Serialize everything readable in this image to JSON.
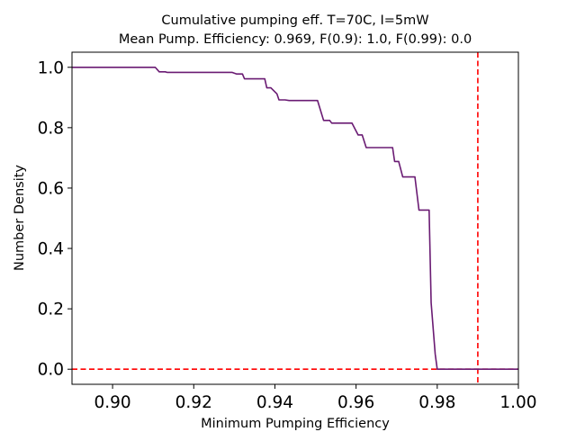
{
  "chart_data": {
    "type": "line",
    "title": "Cumulative pumping eff. T=70C, I=5mW",
    "subtitle": "Mean Pump. Efficiency: 0.969, F(0.9): 1.0, F(0.99): 0.0",
    "xlabel": "Minimum Pumping Efficiency",
    "ylabel": "Number Density",
    "xlim": [
      0.89,
      1.0
    ],
    "ylim": [
      -0.05,
      1.05
    ],
    "x_ticks": [
      "0.90",
      "0.92",
      "0.94",
      "0.96",
      "0.98",
      "1.00"
    ],
    "x_tick_values": [
      0.9,
      0.92,
      0.94,
      0.96,
      0.98,
      1.0
    ],
    "y_ticks": [
      "0.0",
      "0.2",
      "0.4",
      "0.6",
      "0.8",
      "1.0"
    ],
    "y_tick_values": [
      0.0,
      0.2,
      0.4,
      0.6,
      0.8,
      1.0
    ],
    "grid": false,
    "legend": "none",
    "series": [
      {
        "color": "#6a1b73",
        "points": [
          [
            0.89,
            1.0
          ],
          [
            0.9105,
            1.0
          ],
          [
            0.9115,
            0.985
          ],
          [
            0.913,
            0.985
          ],
          [
            0.9135,
            0.983
          ],
          [
            0.9295,
            0.983
          ],
          [
            0.9305,
            0.978
          ],
          [
            0.932,
            0.978
          ],
          [
            0.9325,
            0.962
          ],
          [
            0.9375,
            0.962
          ],
          [
            0.938,
            0.932
          ],
          [
            0.939,
            0.932
          ],
          [
            0.9405,
            0.912
          ],
          [
            0.941,
            0.892
          ],
          [
            0.9425,
            0.892
          ],
          [
            0.9435,
            0.89
          ],
          [
            0.9505,
            0.89
          ],
          [
            0.952,
            0.824
          ],
          [
            0.9535,
            0.824
          ],
          [
            0.954,
            0.815
          ],
          [
            0.959,
            0.815
          ],
          [
            0.9605,
            0.776
          ],
          [
            0.9615,
            0.776
          ],
          [
            0.9625,
            0.734
          ],
          [
            0.969,
            0.734
          ],
          [
            0.9695,
            0.688
          ],
          [
            0.9705,
            0.688
          ],
          [
            0.9715,
            0.637
          ],
          [
            0.9745,
            0.637
          ],
          [
            0.9755,
            0.527
          ],
          [
            0.978,
            0.527
          ],
          [
            0.9785,
            0.22
          ],
          [
            0.9795,
            0.05
          ],
          [
            0.98,
            0.0
          ],
          [
            1.0,
            0.0
          ]
        ]
      }
    ],
    "reference_lines": [
      {
        "orientation": "vertical",
        "value": 0.99,
        "color": "#ff0000",
        "style": "dashed"
      },
      {
        "orientation": "horizontal",
        "value": 0.0,
        "color": "#ff0000",
        "style": "dashed"
      }
    ]
  }
}
